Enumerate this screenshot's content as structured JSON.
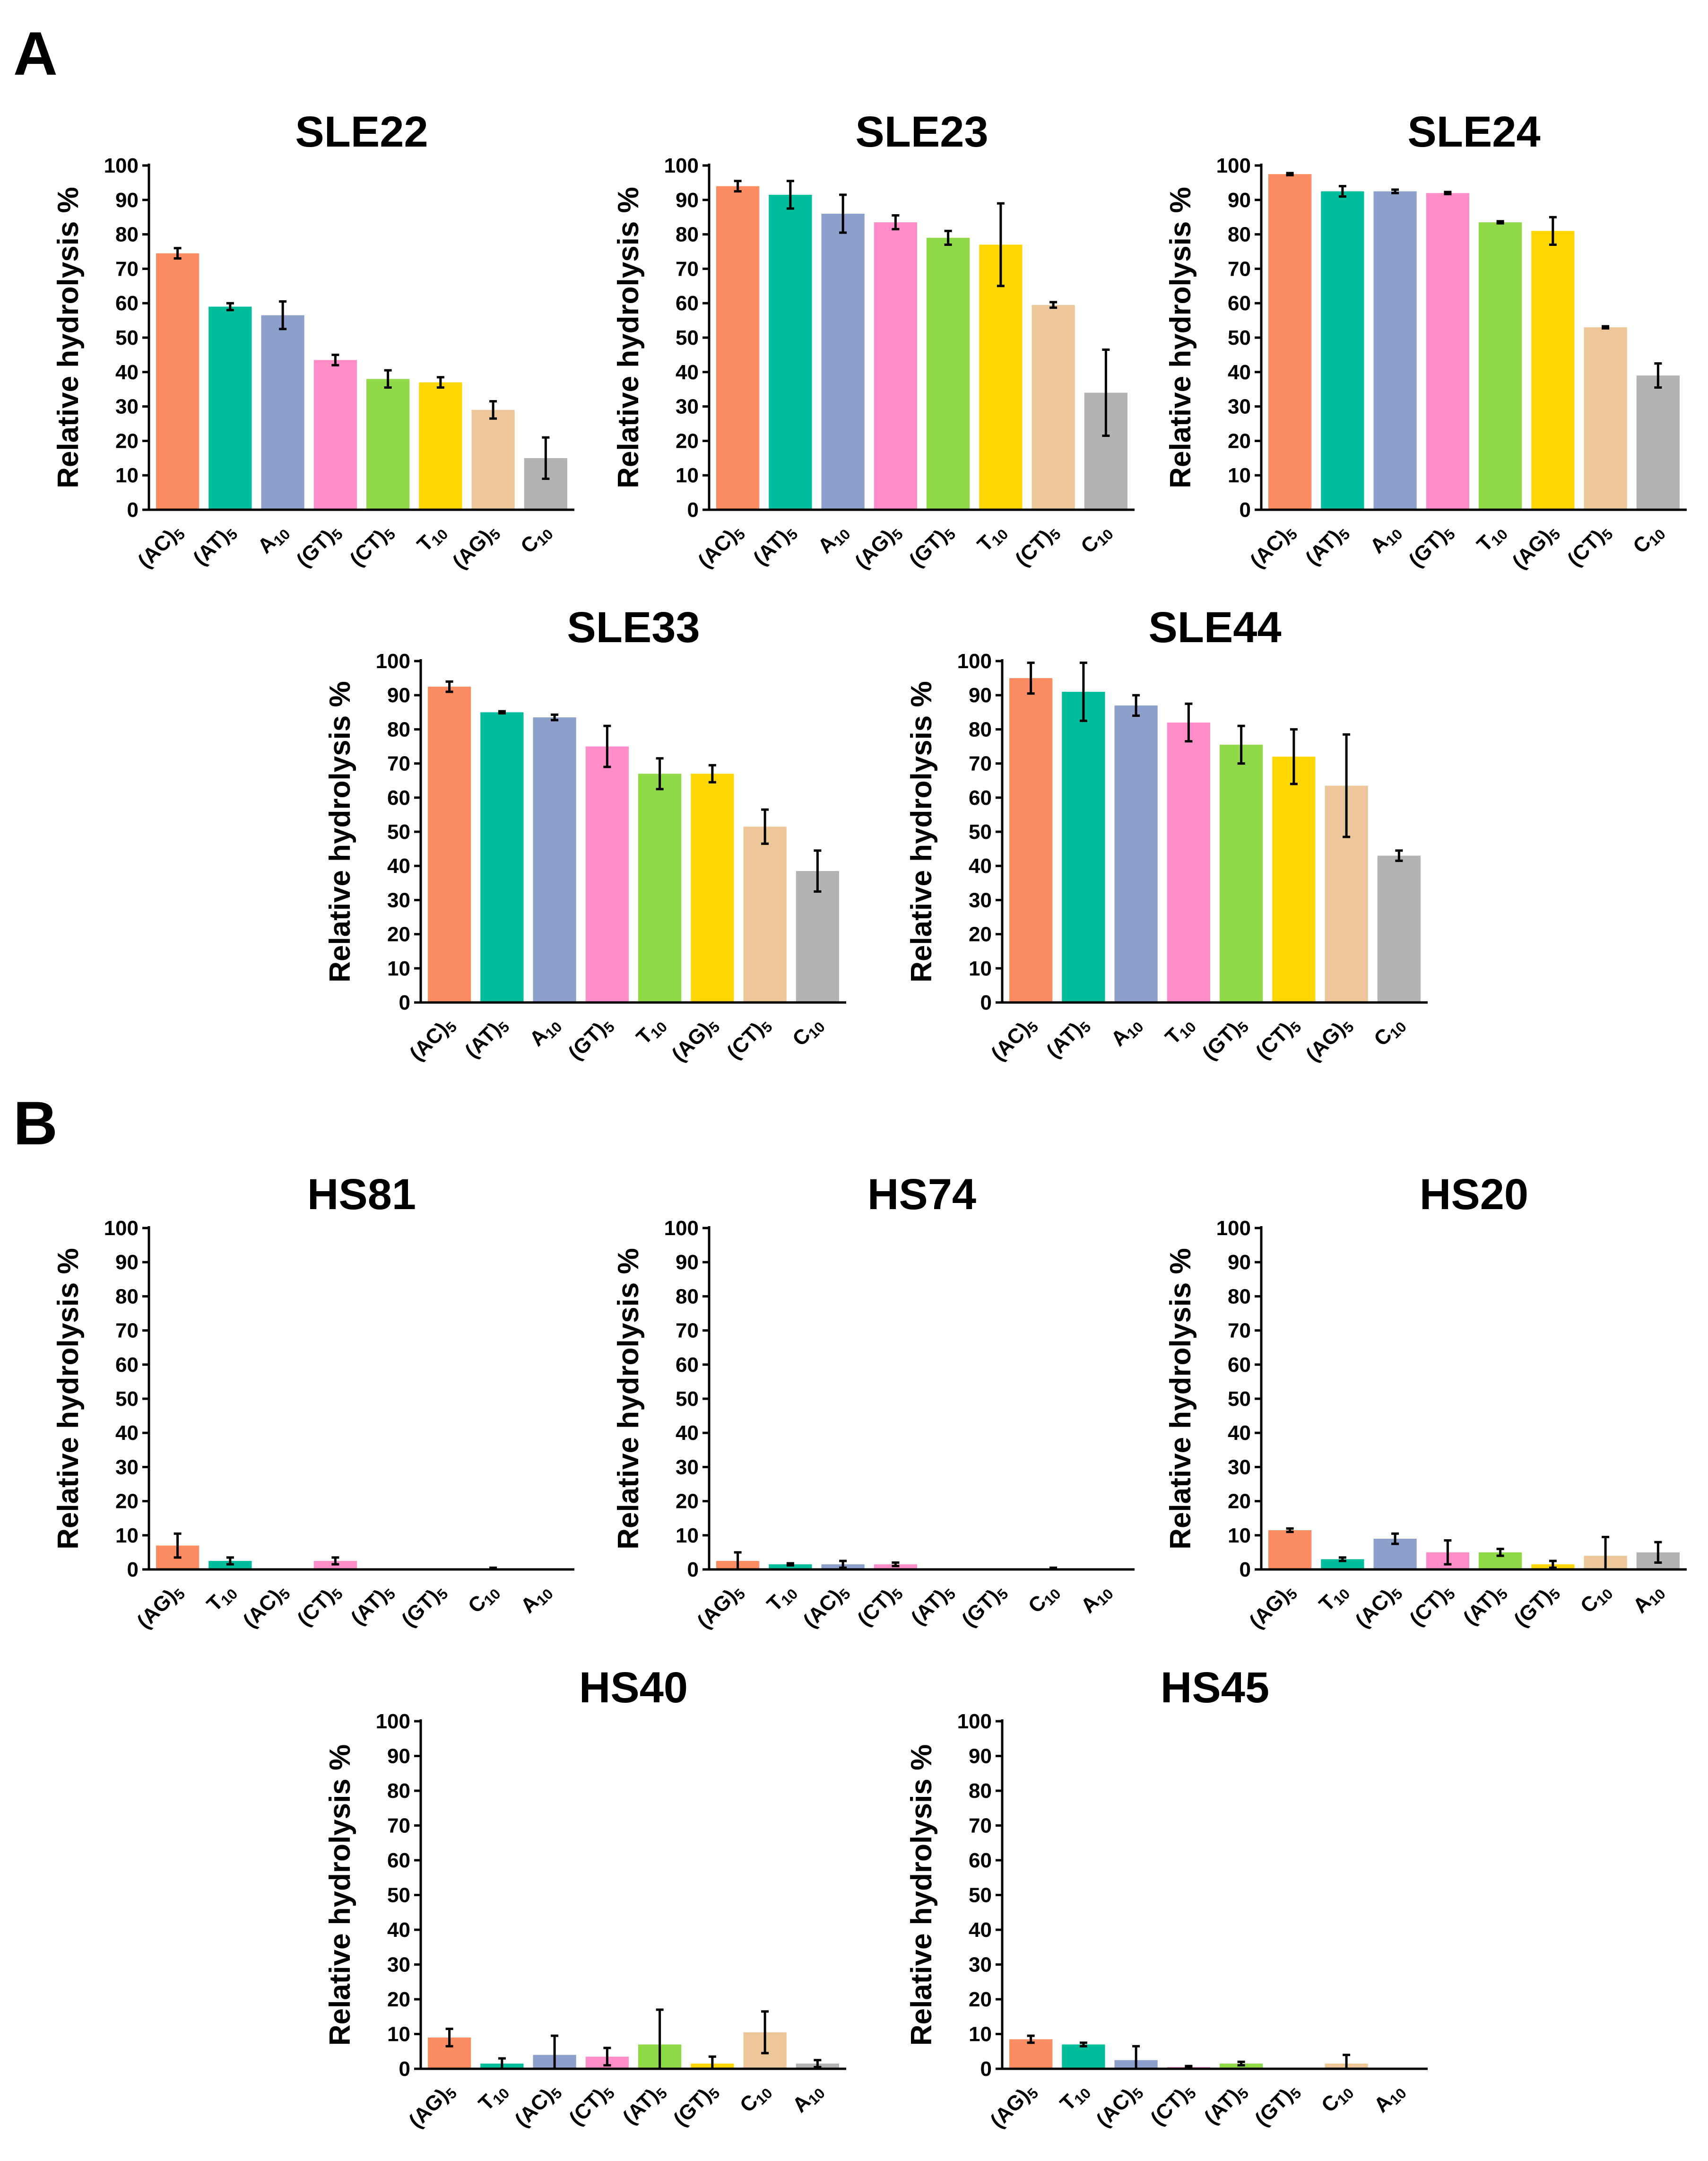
{
  "panels": [
    {
      "label": "A"
    },
    {
      "label": "B"
    }
  ],
  "palette": {
    "(AC)5": "#FC8D62",
    "(AT)5": "#00BE9C",
    "A10": "#8DA0CB",
    "(GT)5": "#FF8EC8",
    "(CT)5": "#8FDA46",
    "T10": "#FFD700",
    "(AG)5": "#EDC699",
    "C10": "#B3B3B3"
  },
  "chart_data": [
    {
      "type": "bar",
      "panel": "A",
      "title": "SLE22",
      "ylabel": "Relative hydrolysis %",
      "ylim": [
        0,
        100
      ],
      "yticks": [
        0,
        10,
        20,
        30,
        40,
        50,
        60,
        70,
        80,
        90,
        100
      ],
      "categories": [
        "(AC)5",
        "(AT)5",
        "A10",
        "(GT)5",
        "(CT)5",
        "T10",
        "(AG)5",
        "C10"
      ],
      "values": [
        74.5,
        59,
        56.5,
        43.5,
        38,
        37,
        29,
        15
      ],
      "errors": [
        1.5,
        1,
        4,
        1.5,
        2.5,
        1.5,
        2.5,
        6
      ],
      "colors": [
        "#FC8D62",
        "#00BE9C",
        "#8DA0CB",
        "#FF8EC8",
        "#8FDA46",
        "#FFD700",
        "#EDC699",
        "#B3B3B3"
      ]
    },
    {
      "type": "bar",
      "panel": "A",
      "title": "SLE23",
      "ylabel": "Relative hydrolysis %",
      "ylim": [
        0,
        100
      ],
      "yticks": [
        0,
        10,
        20,
        30,
        40,
        50,
        60,
        70,
        80,
        90,
        100
      ],
      "categories": [
        "(AC)5",
        "(AT)5",
        "A10",
        "(AG)5",
        "(GT)5",
        "T10",
        "(CT)5",
        "C10"
      ],
      "values": [
        94,
        91.5,
        86,
        83.5,
        79,
        77,
        59.5,
        34
      ],
      "errors": [
        1.5,
        4,
        5.5,
        2,
        2,
        12,
        0.8,
        12.5
      ],
      "colors": [
        "#FC8D62",
        "#00BE9C",
        "#8DA0CB",
        "#FF8EC8",
        "#8FDA46",
        "#FFD700",
        "#EDC699",
        "#B3B3B3"
      ]
    },
    {
      "type": "bar",
      "panel": "A",
      "title": "SLE24",
      "ylabel": "Relative hydrolysis %",
      "ylim": [
        0,
        100
      ],
      "yticks": [
        0,
        10,
        20,
        30,
        40,
        50,
        60,
        70,
        80,
        90,
        100
      ],
      "categories": [
        "(AC)5",
        "(AT)5",
        "A10",
        "(GT)5",
        "T10",
        "(AG)5",
        "(CT)5",
        "C10"
      ],
      "values": [
        97.5,
        92.5,
        92.5,
        92,
        83.5,
        81,
        53,
        39
      ],
      "errors": [
        0.3,
        1.5,
        0.5,
        0.3,
        0.3,
        4,
        0.3,
        3.5
      ],
      "colors": [
        "#FC8D62",
        "#00BE9C",
        "#8DA0CB",
        "#FF8EC8",
        "#8FDA46",
        "#FFD700",
        "#EDC699",
        "#B3B3B3"
      ]
    },
    {
      "type": "bar",
      "panel": "A",
      "title": "SLE33",
      "ylabel": "Relative hydrolysis %",
      "ylim": [
        0,
        100
      ],
      "yticks": [
        0,
        10,
        20,
        30,
        40,
        50,
        60,
        70,
        80,
        90,
        100
      ],
      "categories": [
        "(AC)5",
        "(AT)5",
        "A10",
        "(GT)5",
        "T10",
        "(AG)5",
        "(CT)5",
        "C10"
      ],
      "values": [
        92.5,
        85,
        83.5,
        75,
        67,
        67,
        51.5,
        38.5
      ],
      "errors": [
        1.5,
        0.3,
        0.8,
        6,
        4.5,
        2.5,
        5,
        6
      ],
      "colors": [
        "#FC8D62",
        "#00BE9C",
        "#8DA0CB",
        "#FF8EC8",
        "#8FDA46",
        "#FFD700",
        "#EDC699",
        "#B3B3B3"
      ]
    },
    {
      "type": "bar",
      "panel": "A",
      "title": "SLE44",
      "ylabel": "Relative hydrolysis %",
      "ylim": [
        0,
        100
      ],
      "yticks": [
        0,
        10,
        20,
        30,
        40,
        50,
        60,
        70,
        80,
        90,
        100
      ],
      "categories": [
        "(AC)5",
        "(AT)5",
        "A10",
        "T10",
        "(GT)5",
        "(CT)5",
        "(AG)5",
        "C10"
      ],
      "values": [
        95,
        91,
        87,
        82,
        75.5,
        72,
        63.5,
        43
      ],
      "errors": [
        4.5,
        8.5,
        3,
        5.5,
        5.5,
        8,
        15,
        1.5
      ],
      "colors": [
        "#FC8D62",
        "#00BE9C",
        "#8DA0CB",
        "#FF8EC8",
        "#8FDA46",
        "#FFD700",
        "#EDC699",
        "#B3B3B3"
      ]
    },
    {
      "type": "bar",
      "panel": "B",
      "title": "HS81",
      "ylabel": "Relative hydrolysis %",
      "ylim": [
        0,
        100
      ],
      "yticks": [
        0,
        10,
        20,
        30,
        40,
        50,
        60,
        70,
        80,
        90,
        100
      ],
      "categories": [
        "(AG)5",
        "T10",
        "(AC)5",
        "(CT)5",
        "(AT)5",
        "(GT)5",
        "C10",
        "A10"
      ],
      "values": [
        7,
        2.5,
        0,
        2.5,
        0,
        0,
        0,
        0
      ],
      "errors": [
        3.5,
        1,
        0,
        1,
        0,
        0,
        0.5,
        0
      ],
      "colors": [
        "#FC8D62",
        "#00BE9C",
        "#8DA0CB",
        "#FF8EC8",
        "#8FDA46",
        "#FFD700",
        "#EDC699",
        "#B3B3B3"
      ]
    },
    {
      "type": "bar",
      "panel": "B",
      "title": "HS74",
      "ylabel": "Relative hydrolysis %",
      "ylim": [
        0,
        100
      ],
      "yticks": [
        0,
        10,
        20,
        30,
        40,
        50,
        60,
        70,
        80,
        90,
        100
      ],
      "categories": [
        "(AG)5",
        "T10",
        "(AC)5",
        "(CT)5",
        "(AT)5",
        "(GT)5",
        "C10",
        "A10"
      ],
      "values": [
        2.5,
        1.5,
        1.5,
        1.5,
        0,
        0,
        0,
        0
      ],
      "errors": [
        2.5,
        0.3,
        1,
        0.5,
        0,
        0,
        0.5,
        0
      ],
      "colors": [
        "#FC8D62",
        "#00BE9C",
        "#8DA0CB",
        "#FF8EC8",
        "#8FDA46",
        "#FFD700",
        "#EDC699",
        "#B3B3B3"
      ]
    },
    {
      "type": "bar",
      "panel": "B",
      "title": "HS20",
      "ylabel": "Relative hydrolysis %",
      "ylim": [
        0,
        100
      ],
      "yticks": [
        0,
        10,
        20,
        30,
        40,
        50,
        60,
        70,
        80,
        90,
        100
      ],
      "categories": [
        "(AG)5",
        "T10",
        "(AC)5",
        "(CT)5",
        "(AT)5",
        "(GT)5",
        "C10",
        "A10"
      ],
      "values": [
        11.5,
        3,
        9,
        5,
        5,
        1.5,
        4,
        5
      ],
      "errors": [
        0.5,
        0.5,
        1.5,
        3.5,
        1,
        1,
        5.5,
        3
      ],
      "colors": [
        "#FC8D62",
        "#00BE9C",
        "#8DA0CB",
        "#FF8EC8",
        "#8FDA46",
        "#FFD700",
        "#EDC699",
        "#B3B3B3"
      ]
    },
    {
      "type": "bar",
      "panel": "B",
      "title": "HS40",
      "ylabel": "Relative hydrolysis %",
      "ylim": [
        0,
        100
      ],
      "yticks": [
        0,
        10,
        20,
        30,
        40,
        50,
        60,
        70,
        80,
        90,
        100
      ],
      "categories": [
        "(AG)5",
        "T10",
        "(AC)5",
        "(CT)5",
        "(AT)5",
        "(GT)5",
        "C10",
        "A10"
      ],
      "values": [
        9,
        1.5,
        4,
        3.5,
        7,
        1.5,
        10.5,
        1.5
      ],
      "errors": [
        2.5,
        1.5,
        5.5,
        2.5,
        10,
        2,
        6,
        1
      ],
      "colors": [
        "#FC8D62",
        "#00BE9C",
        "#8DA0CB",
        "#FF8EC8",
        "#8FDA46",
        "#FFD700",
        "#EDC699",
        "#B3B3B3"
      ]
    },
    {
      "type": "bar",
      "panel": "B",
      "title": "HS45",
      "ylabel": "Relative hydrolysis %",
      "ylim": [
        0,
        100
      ],
      "yticks": [
        0,
        10,
        20,
        30,
        40,
        50,
        60,
        70,
        80,
        90,
        100
      ],
      "categories": [
        "(AG)5",
        "T10",
        "(AC)5",
        "(CT)5",
        "(AT)5",
        "(GT)5",
        "C10",
        "A10"
      ],
      "values": [
        8.5,
        7,
        2.5,
        0.5,
        1.5,
        0,
        1.5,
        0
      ],
      "errors": [
        1,
        0.5,
        4,
        0.3,
        0.5,
        0,
        2.5,
        0
      ],
      "colors": [
        "#FC8D62",
        "#00BE9C",
        "#8DA0CB",
        "#FF8EC8",
        "#8FDA46",
        "#FFD700",
        "#EDC699",
        "#B3B3B3"
      ]
    }
  ]
}
